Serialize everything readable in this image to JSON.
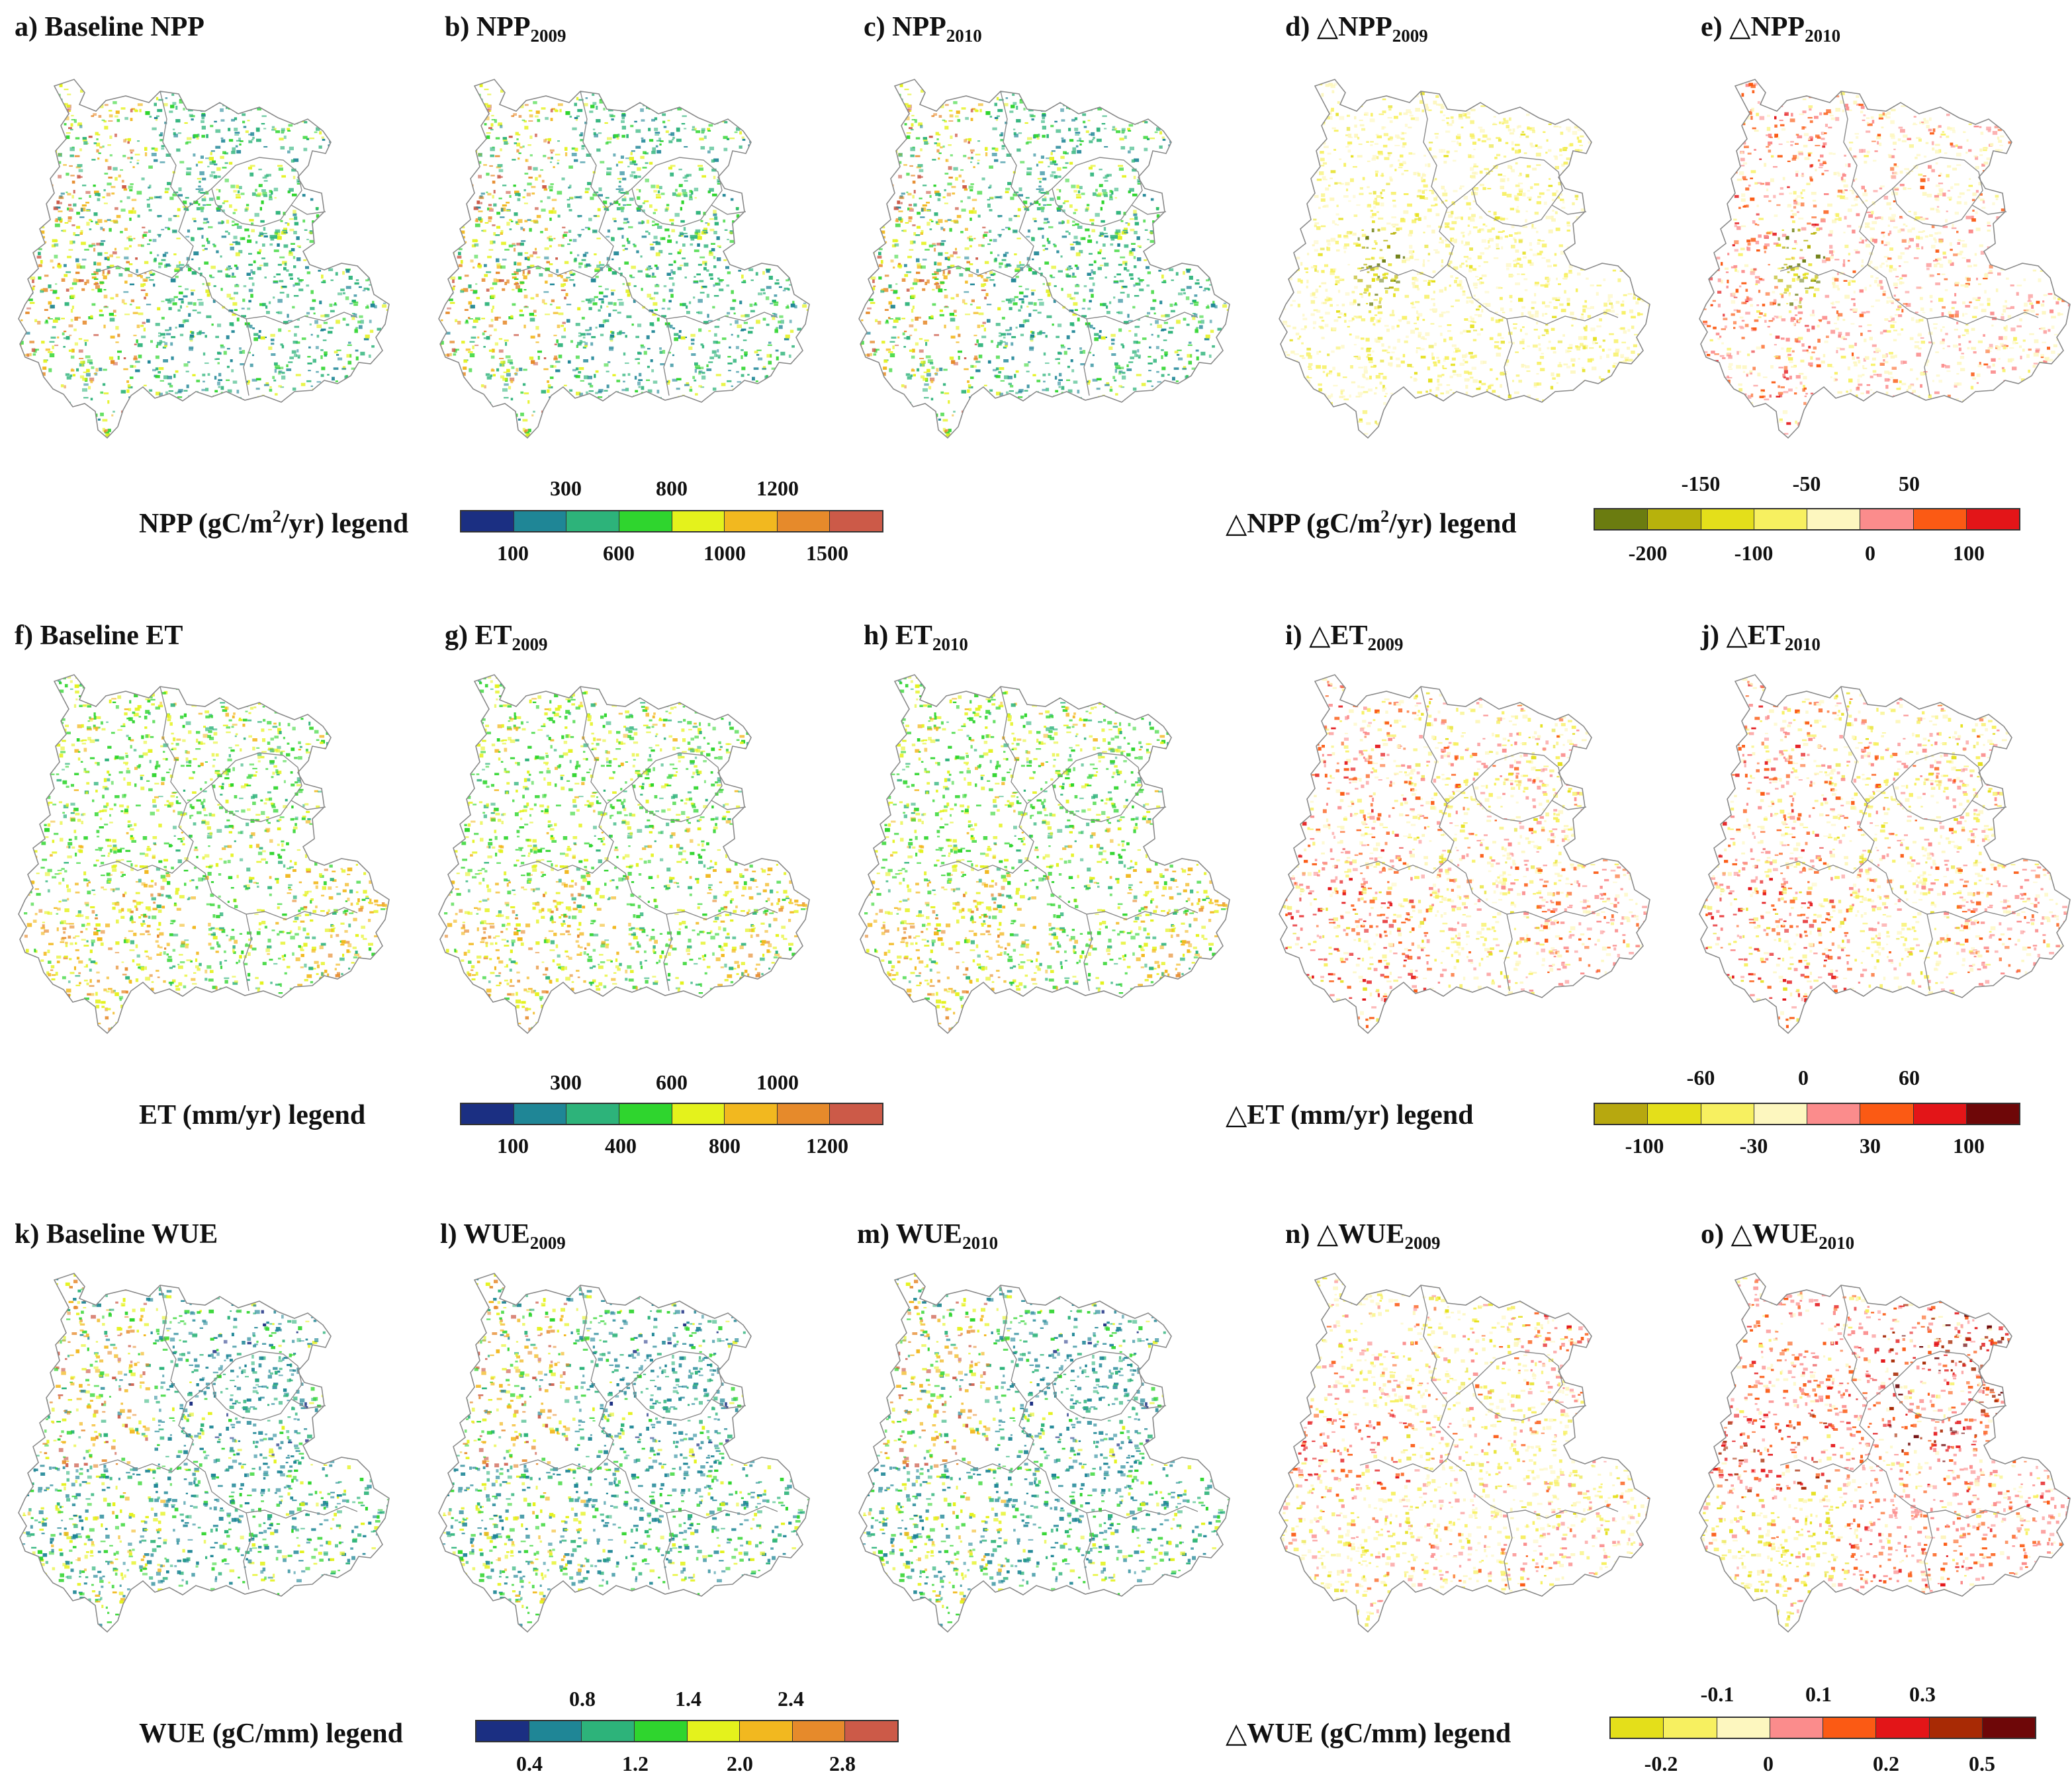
{
  "colors": {
    "abs": [
      "#1b2f82",
      "#1f8696",
      "#2db37a",
      "#2fd52e",
      "#e4f21c",
      "#f2b81f",
      "#e68a2b",
      "#cc5a48"
    ],
    "dnpp": [
      "#6b7c10",
      "#b7b20c",
      "#e4df1a",
      "#f7f060",
      "#fdf7bf",
      "#fb8c8c",
      "#fb5a14",
      "#e31518"
    ],
    "det": [
      "#b7a80f",
      "#e4df1a",
      "#f7f060",
      "#fdf7bf",
      "#fb8c8c",
      "#fb5a14",
      "#e31518",
      "#6e0708"
    ],
    "dwue": [
      "#e4df1a",
      "#f7f060",
      "#fdf7bf",
      "#fb8c8c",
      "#fb5a14",
      "#e31518",
      "#a82a05",
      "#6e0708"
    ]
  },
  "rows": [
    {
      "panels": [
        {
          "label": "a) Baseline NPP",
          "sub": "",
          "scheme": "abs",
          "variant": "npp"
        },
        {
          "label": "b)  NPP",
          "sub": "2009",
          "scheme": "abs",
          "variant": "npp"
        },
        {
          "label": "c)  NPP",
          "sub": "2010",
          "scheme": "abs",
          "variant": "npp"
        },
        {
          "label": "d)  △NPP",
          "sub": "2009",
          "scheme": "d",
          "variant": "dnpp09"
        },
        {
          "label": "e)  △NPP",
          "sub": "2010",
          "scheme": "d",
          "variant": "dnpp10"
        }
      ],
      "legend_left": {
        "title_pre": "NPP (gC/m",
        "title_sup": "2",
        "title_post": "/yr) legend",
        "top_ticks": [
          "300",
          "800",
          "1200"
        ],
        "bottom_ticks": [
          "100",
          "600",
          "1000",
          "1500"
        ]
      },
      "legend_right": {
        "title_pre": "△NPP  (gC/m",
        "title_sup": "2",
        "title_post": "/yr) legend",
        "top_ticks": [
          "-150",
          "-50",
          "50"
        ],
        "bottom_ticks": [
          "-200",
          "-100",
          "0",
          "100"
        ]
      }
    },
    {
      "panels": [
        {
          "label": "f) Baseline ET",
          "sub": "",
          "scheme": "abs",
          "variant": "et"
        },
        {
          "label": "g)  ET",
          "sub": "2009",
          "scheme": "abs",
          "variant": "et"
        },
        {
          "label": "h) ET",
          "sub": "2010",
          "scheme": "abs",
          "variant": "et"
        },
        {
          "label": "i)  △ET",
          "sub": "2009",
          "scheme": "d",
          "variant": "det"
        },
        {
          "label": "j)  △ET",
          "sub": "2010",
          "scheme": "d",
          "variant": "det"
        }
      ],
      "legend_left": {
        "title_pre": "ET (mm/yr) legend",
        "title_sup": "",
        "title_post": "",
        "top_ticks": [
          "300",
          "600",
          "1000"
        ],
        "bottom_ticks": [
          "100",
          "400",
          "800",
          "1200"
        ]
      },
      "legend_right": {
        "title_pre": "△ET  (mm/yr) legend",
        "title_sup": "",
        "title_post": "",
        "top_ticks": [
          "-60",
          "0",
          "60"
        ],
        "bottom_ticks": [
          "-100",
          "-30",
          "30",
          "100"
        ]
      }
    },
    {
      "panels": [
        {
          "label": "k) Baseline WUE",
          "sub": "",
          "scheme": "abs",
          "variant": "wue"
        },
        {
          "label": "l)  WUE",
          "sub": "2009",
          "scheme": "abs",
          "variant": "wue"
        },
        {
          "label": "m) WUE",
          "sub": "2010",
          "scheme": "abs",
          "variant": "wue"
        },
        {
          "label": "n)  △WUE",
          "sub": "2009",
          "scheme": "d",
          "variant": "dwue09"
        },
        {
          "label": "o)  △WUE",
          "sub": "2010",
          "scheme": "d",
          "variant": "dwue10"
        }
      ],
      "legend_left": {
        "title_pre": "WUE (gC/mm) legend",
        "title_sup": "",
        "title_post": "",
        "top_ticks": [
          "0.8",
          "1.4",
          "2.4"
        ],
        "bottom_ticks": [
          "0.4",
          "1.2",
          "2.0",
          "2.8"
        ]
      },
      "legend_right": {
        "title_pre": "△WUE (gC/mm) legend",
        "title_sup": "",
        "title_post": "",
        "top_ticks": [
          "-0.1",
          "0.1",
          "0.3"
        ],
        "bottom_ticks": [
          "-0.2",
          "0",
          "0.2",
          "0.5"
        ]
      }
    }
  ]
}
